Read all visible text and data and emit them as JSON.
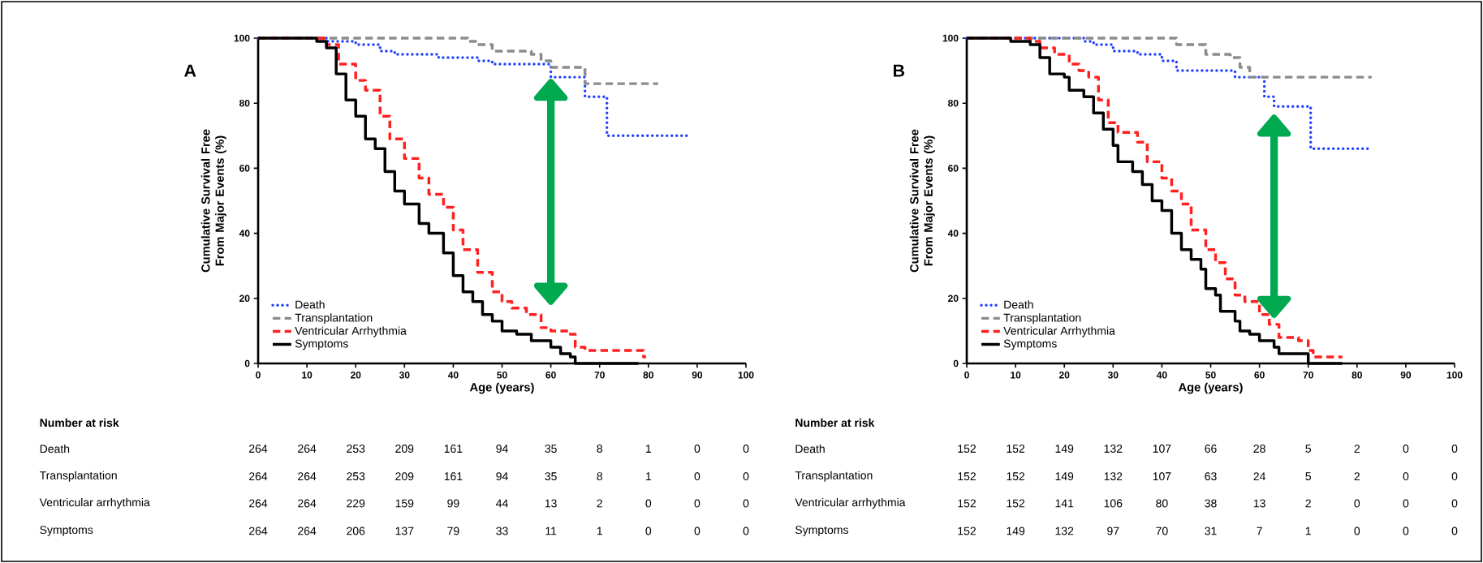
{
  "chart_data": [
    {
      "type": "step",
      "title": "A",
      "xlabel": "Age (years)",
      "ylabel": "Cumulative Survival Free From Major Events (%)",
      "xlim": [
        0,
        100
      ],
      "ylim": [
        0,
        100
      ],
      "xticks": [
        0,
        10,
        20,
        30,
        40,
        50,
        60,
        70,
        80,
        90,
        100
      ],
      "yticks": [
        0,
        20,
        40,
        60,
        80,
        100
      ],
      "legend": "bottom left",
      "series": [
        {
          "name": "Death",
          "color": "#1f3fff",
          "line_style": "dotted",
          "x": [
            0,
            14,
            20,
            25,
            28,
            37,
            45,
            48,
            57,
            60,
            67,
            71.5,
            88
          ],
          "values": [
            100,
            99,
            98,
            96,
            95,
            94,
            93,
            92,
            92,
            88,
            82,
            70,
            70
          ]
        },
        {
          "name": "Transplantation",
          "color": "#8c8c8c",
          "line_style": "dashed",
          "x": [
            0,
            33,
            43,
            45,
            48,
            56,
            58,
            60,
            67,
            82
          ],
          "values": [
            100,
            100,
            99,
            98,
            96,
            95,
            93,
            91,
            86,
            86
          ]
        },
        {
          "name": "Ventricular Arrhythmia",
          "color": "#ff2020",
          "line_style": "dashed",
          "x": [
            0,
            14,
            16.5,
            20,
            22,
            25,
            27,
            30,
            33,
            35,
            38,
            40,
            42,
            45,
            48,
            50,
            52,
            55,
            58,
            60,
            64,
            65,
            67,
            79,
            79.5
          ],
          "values": [
            100,
            98,
            92,
            87,
            84,
            76,
            69,
            63,
            57,
            52,
            48,
            41,
            35,
            28,
            22,
            19,
            17,
            15,
            11,
            10,
            9,
            5,
            4,
            2,
            2
          ]
        },
        {
          "name": "Symptoms",
          "color": "#000000",
          "line_style": "solid",
          "x": [
            0,
            12,
            14,
            16,
            18,
            20,
            22,
            24,
            26,
            28,
            30,
            33,
            35,
            38,
            40,
            42,
            44,
            46,
            48,
            50,
            53,
            56,
            60,
            62,
            64,
            65,
            78
          ],
          "values": [
            100,
            99,
            97,
            89,
            81,
            76,
            69,
            66,
            59,
            53,
            49,
            43,
            40,
            34,
            27,
            22,
            19,
            15,
            13,
            10,
            9,
            7,
            5,
            3,
            2,
            0,
            0
          ]
        }
      ],
      "annotations": [
        "Number at risk",
        "Death",
        "264",
        "264",
        "253",
        "209",
        "161",
        "94",
        "35",
        "8",
        "1",
        "0",
        "0",
        "Transplantation",
        "264",
        "264",
        "253",
        "209",
        "161",
        "94",
        "35",
        "8",
        "1",
        "0",
        "0",
        "Ventricular arrhythmia",
        "264",
        "264",
        "229",
        "159",
        "99",
        "44",
        "13",
        "2",
        "0",
        "0",
        "0",
        "Symptoms",
        "264",
        "264",
        "206",
        "137",
        "79",
        "33",
        "11",
        "1",
        "0",
        "0",
        "0"
      ]
    },
    {
      "type": "step",
      "title": "B",
      "xlabel": "Age (years)",
      "ylabel": "Cumulative Survival Free From Major Events (%)",
      "xlim": [
        0,
        100
      ],
      "ylim": [
        0,
        100
      ],
      "xticks": [
        0,
        10,
        20,
        30,
        40,
        50,
        60,
        70,
        80,
        90,
        100
      ],
      "yticks": [
        0,
        20,
        40,
        60,
        80,
        100
      ],
      "legend": "bottom left",
      "series": [
        {
          "name": "Death",
          "color": "#1f3fff",
          "line_style": "dotted",
          "x": [
            0,
            24,
            26,
            30,
            35,
            40,
            43,
            55,
            61,
            63,
            70.5,
            83
          ],
          "values": [
            100,
            99,
            98,
            96,
            95,
            93,
            90,
            88,
            82,
            79,
            66,
            66
          ]
        },
        {
          "name": "Transplantation",
          "color": "#8c8c8c",
          "line_style": "dashed",
          "x": [
            0,
            43,
            49,
            54,
            56,
            58,
            83
          ],
          "values": [
            100,
            98,
            95,
            94,
            91,
            88,
            88
          ]
        },
        {
          "name": "Ventricular Arrhythmia",
          "color": "#ff2020",
          "line_style": "dashed",
          "x": [
            0,
            13,
            15,
            18,
            21,
            23,
            25,
            27,
            29,
            31,
            35,
            37,
            40,
            42,
            44,
            46,
            49,
            51,
            53,
            55,
            57,
            60,
            62,
            64,
            68,
            70,
            71,
            77
          ],
          "values": [
            100,
            99,
            97,
            95,
            92,
            90,
            88,
            81,
            74,
            71,
            68,
            62,
            57,
            53,
            49,
            41,
            35,
            31,
            26,
            21,
            19,
            15,
            12,
            8,
            7,
            4,
            2,
            2
          ]
        },
        {
          "name": "Symptoms",
          "color": "#000000",
          "line_style": "solid",
          "x": [
            0,
            9,
            13,
            15,
            17,
            20,
            21,
            24,
            26,
            28,
            30,
            31,
            34,
            36,
            38,
            40,
            42,
            44,
            46,
            48,
            49,
            51,
            52,
            55,
            56,
            58,
            60,
            63,
            64,
            70,
            77
          ],
          "values": [
            100,
            99,
            98,
            94,
            89,
            88,
            84,
            82,
            77,
            72,
            67,
            62,
            59,
            55,
            50,
            47,
            40,
            35,
            32,
            29,
            23,
            21,
            16,
            13,
            10,
            9,
            7,
            5,
            3,
            0,
            0
          ]
        }
      ],
      "annotations": [
        "Number at risk",
        "Death",
        "152",
        "152",
        "149",
        "132",
        "107",
        "66",
        "28",
        "5",
        "2",
        "0",
        "0",
        "Transplantation",
        "152",
        "152",
        "149",
        "132",
        "107",
        "63",
        "24",
        "5",
        "2",
        "0",
        "0",
        "Ventricular arrhythmia",
        "152",
        "152",
        "141",
        "106",
        "80",
        "38",
        "13",
        "2",
        "0",
        "0",
        "0",
        "Symptoms",
        "152",
        "149",
        "132",
        "97",
        "70",
        "31",
        "7",
        "1",
        "0",
        "0",
        "0"
      ]
    }
  ]
}
